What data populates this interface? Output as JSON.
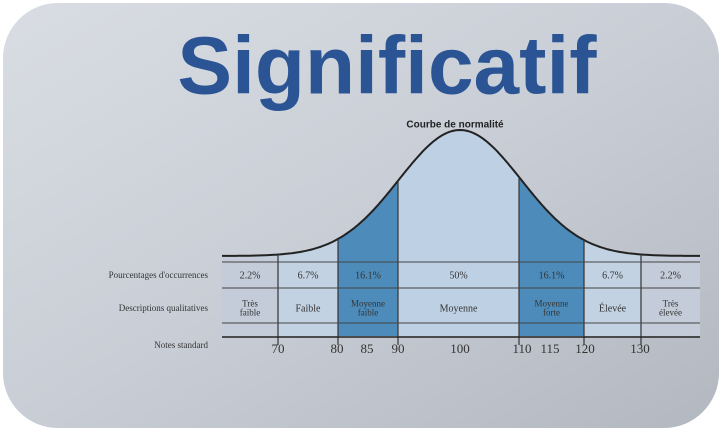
{
  "title": "Significatif",
  "curve_title": "Courbe de normalité",
  "row_labels": [
    "Pourcentages d'occurrences",
    "Descriptions qualitatives",
    "Notes standard"
  ],
  "bands": [
    {
      "percent": "2.2%",
      "description": [
        "Très",
        "faible"
      ]
    },
    {
      "percent": "6.7%",
      "description": [
        "Faible"
      ]
    },
    {
      "percent": "16.1%",
      "description": [
        "Moyenne",
        "faible"
      ]
    },
    {
      "percent": "50%",
      "description": [
        "Moyenne"
      ]
    },
    {
      "percent": "16.1%",
      "description": [
        "Moyenne",
        "forte"
      ]
    },
    {
      "percent": "6.7%",
      "description": [
        "Élevée"
      ]
    },
    {
      "percent": "2.2%",
      "description": [
        "Très",
        "élevée"
      ]
    }
  ],
  "scores": [
    "70",
    "80",
    "85",
    "90",
    "100",
    "110",
    "115",
    "120",
    "130"
  ]
}
